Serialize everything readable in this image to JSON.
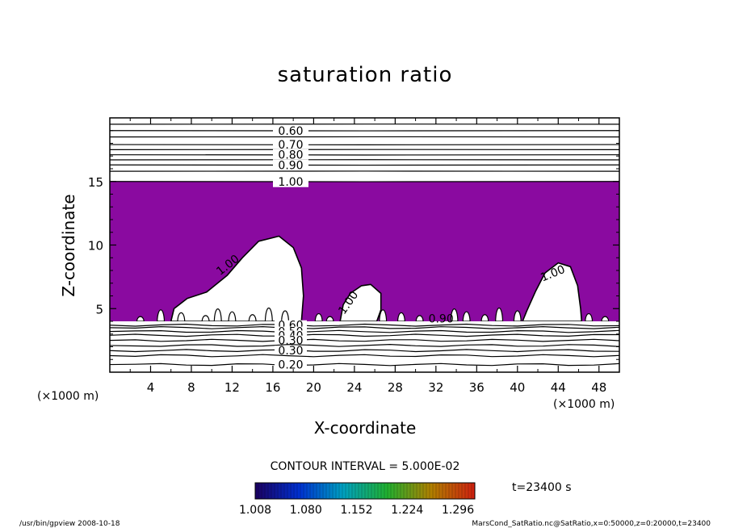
{
  "chart_data": {
    "type": "contour",
    "title": "saturation ratio",
    "xlabel": "X-coordinate",
    "ylabel": "Z-coordinate",
    "x_unit": "(×1000 m)",
    "y_unit": "(×1000 m)",
    "xlim": [
      0,
      50
    ],
    "ylim": [
      0,
      20
    ],
    "x_ticks": [
      4,
      8,
      12,
      16,
      20,
      24,
      28,
      32,
      36,
      40,
      44,
      48
    ],
    "x_tick_labels": [
      "4",
      "8",
      "12",
      "16",
      "20",
      "24",
      "28",
      "32",
      "36",
      "40",
      "44",
      "48"
    ],
    "y_ticks": [
      5,
      10,
      15
    ],
    "y_tick_labels": [
      "5",
      "10",
      "15"
    ],
    "contour_interval_text": "CONTOUR INTERVAL = 5.000E-02",
    "time_text": "t=23400 s",
    "colorbar": {
      "tick_labels": [
        "1.008",
        "1.080",
        "1.152",
        "1.224",
        "1.296"
      ],
      "range": [
        1.008,
        1.32
      ]
    },
    "upper_contours": [
      {
        "z": 19.5,
        "label": ""
      },
      {
        "z": 19.0,
        "label": "0.60"
      },
      {
        "z": 18.5,
        "label": ""
      },
      {
        "z": 17.9,
        "label": "0.70"
      },
      {
        "z": 17.5,
        "label": ""
      },
      {
        "z": 17.1,
        "label": "0.80"
      },
      {
        "z": 16.7,
        "label": ""
      },
      {
        "z": 16.3,
        "label": "0.90"
      },
      {
        "z": 15.8,
        "label": ""
      },
      {
        "z": 15.0,
        "label": "1.00"
      }
    ],
    "lower_contours": [
      {
        "z": 3.7,
        "label": "0.60"
      },
      {
        "z": 3.5,
        "label": ""
      },
      {
        "z": 3.2,
        "label": "0.50"
      },
      {
        "z": 2.9,
        "label": "0.40"
      },
      {
        "z": 2.5,
        "label": "0.30"
      },
      {
        "z": 2.1,
        "label": ""
      },
      {
        "z": 1.7,
        "label": "0.30"
      },
      {
        "z": 1.3,
        "label": ""
      },
      {
        "z": 0.6,
        "label": "0.20"
      }
    ],
    "supersaturated_region": {
      "z_min": 4.0,
      "z_max": 15.0,
      "color": "#8a0aa0",
      "min_value": 1.0
    },
    "inline_contour_labels": [
      {
        "x": 11.8,
        "z": 8.2,
        "text": "1.00",
        "rotate": -38
      },
      {
        "x": 23.7,
        "z": 5.3,
        "text": "1.00",
        "rotate": -55
      },
      {
        "x": 43.6,
        "z": 7.5,
        "text": "1.00",
        "rotate": -22
      },
      {
        "x": 32.5,
        "z": 3.9,
        "text": "0.90",
        "rotate": 0
      }
    ],
    "sub_saturated_bubbles": [
      {
        "points": [
          [
            6,
            4.0
          ],
          [
            6.3,
            5.0
          ],
          [
            7.6,
            5.8
          ],
          [
            9.5,
            6.3
          ],
          [
            11.5,
            7.6
          ],
          [
            13.0,
            9.0
          ],
          [
            14.6,
            10.3
          ],
          [
            16.6,
            10.7
          ],
          [
            18.0,
            9.8
          ],
          [
            18.8,
            8.2
          ],
          [
            19.0,
            6.0
          ],
          [
            18.8,
            4.0
          ]
        ]
      },
      {
        "points": [
          [
            22.6,
            4.0
          ],
          [
            22.9,
            5.3
          ],
          [
            23.6,
            6.2
          ],
          [
            24.7,
            6.8
          ],
          [
            25.6,
            6.9
          ],
          [
            26.6,
            6.2
          ],
          [
            26.6,
            4.9
          ],
          [
            26.2,
            4.0
          ]
        ]
      },
      {
        "points": [
          [
            40.5,
            4.0
          ],
          [
            40.9,
            4.8
          ],
          [
            41.8,
            6.4
          ],
          [
            42.7,
            7.8
          ],
          [
            44.0,
            8.6
          ],
          [
            45.2,
            8.3
          ],
          [
            45.9,
            6.8
          ],
          [
            46.2,
            5.0
          ],
          [
            46.3,
            4.0
          ]
        ]
      }
    ],
    "accent_color": "#8a0aa0"
  },
  "footer": {
    "left": "/usr/bin/gpview   2008-10-18",
    "right": "MarsCond_SatRatio.nc@SatRatio,x=0:50000,z=0:20000,t=23400"
  }
}
